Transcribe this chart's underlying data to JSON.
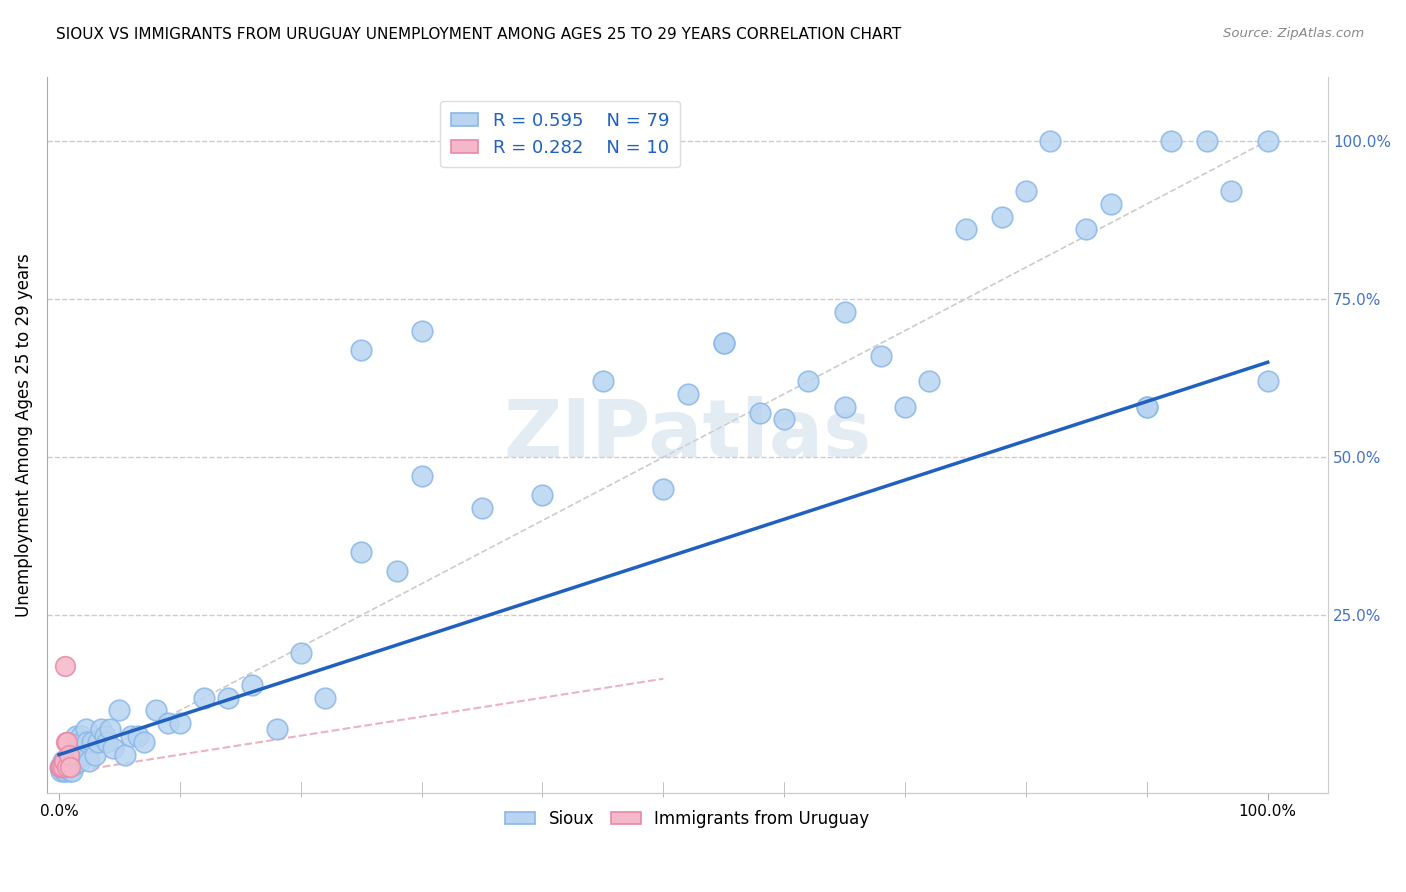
{
  "title": "SIOUX VS IMMIGRANTS FROM URUGUAY UNEMPLOYMENT AMONG AGES 25 TO 29 YEARS CORRELATION CHART",
  "source": "Source: ZipAtlas.com",
  "ylabel": "Unemployment Among Ages 25 to 29 years",
  "legend_r1": "R = 0.595",
  "legend_n1": "N = 79",
  "legend_r2": "R = 0.282",
  "legend_n2": "N = 10",
  "sioux_color": "#b8d4f0",
  "sioux_edge_color": "#8ab8e8",
  "uruguay_color": "#f5b8c8",
  "uruguay_edge_color": "#e888a8",
  "trend_sioux_color": "#2060c0",
  "trend_uruguay_color": "#e8a0b0",
  "ref_line_color": "#cccccc",
  "watermark": "ZIPatlas",
  "sioux_x": [
    0.001,
    0.002,
    0.003,
    0.004,
    0.005,
    0.005,
    0.006,
    0.007,
    0.008,
    0.009,
    0.01,
    0.011,
    0.012,
    0.013,
    0.014,
    0.015,
    0.016,
    0.017,
    0.018,
    0.019,
    0.02,
    0.022,
    0.023,
    0.025,
    0.027,
    0.03,
    0.032,
    0.035,
    0.038,
    0.04,
    0.042,
    0.045,
    0.05,
    0.055,
    0.06,
    0.065,
    0.07,
    0.08,
    0.09,
    0.1,
    0.12,
    0.14,
    0.16,
    0.18,
    0.2,
    0.22,
    0.25,
    0.28,
    0.3,
    0.35,
    0.4,
    0.45,
    0.5,
    0.52,
    0.55,
    0.58,
    0.6,
    0.62,
    0.65,
    0.68,
    0.7,
    0.72,
    0.75,
    0.78,
    0.8,
    0.82,
    0.85,
    0.87,
    0.9,
    0.92,
    0.95,
    0.97,
    1.0,
    0.25,
    0.3,
    0.55,
    0.65,
    0.9,
    1.0
  ],
  "sioux_y": [
    0.01,
    0.005,
    0.02,
    0.005,
    0.01,
    0.02,
    0.005,
    0.015,
    0.01,
    0.005,
    0.01,
    0.005,
    0.02,
    0.015,
    0.06,
    0.04,
    0.03,
    0.02,
    0.06,
    0.05,
    0.03,
    0.07,
    0.05,
    0.02,
    0.05,
    0.03,
    0.05,
    0.07,
    0.06,
    0.05,
    0.07,
    0.04,
    0.1,
    0.03,
    0.06,
    0.06,
    0.05,
    0.1,
    0.08,
    0.08,
    0.12,
    0.12,
    0.14,
    0.07,
    0.19,
    0.12,
    0.35,
    0.32,
    0.47,
    0.42,
    0.44,
    0.62,
    0.45,
    0.6,
    0.68,
    0.57,
    0.56,
    0.62,
    0.58,
    0.66,
    0.58,
    0.62,
    0.86,
    0.88,
    0.92,
    1.0,
    0.86,
    0.9,
    0.58,
    1.0,
    1.0,
    0.92,
    1.0,
    0.67,
    0.7,
    0.68,
    0.73,
    0.58,
    0.62
  ],
  "uruguay_x": [
    0.001,
    0.002,
    0.003,
    0.004,
    0.005,
    0.006,
    0.007,
    0.007,
    0.008,
    0.009
  ],
  "uruguay_y": [
    0.01,
    0.01,
    0.01,
    0.02,
    0.17,
    0.05,
    0.01,
    0.05,
    0.03,
    0.01
  ],
  "sioux_trend_x0": 0.0,
  "sioux_trend_x1": 1.0,
  "sioux_trend_y0": 0.03,
  "sioux_trend_y1": 0.65,
  "xlim_min": -0.01,
  "xlim_max": 1.05,
  "ylim_min": -0.03,
  "ylim_max": 1.1
}
